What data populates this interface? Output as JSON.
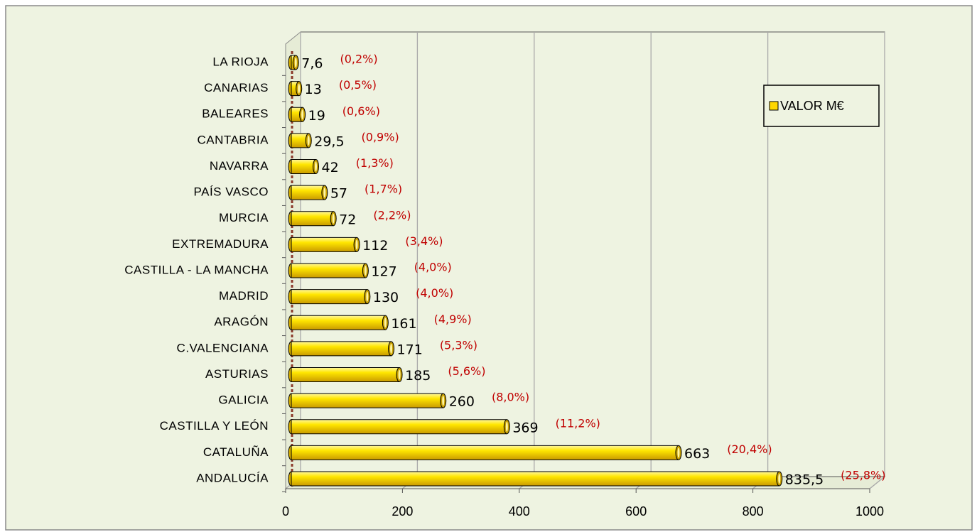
{
  "chart_data": {
    "type": "bar",
    "orientation": "horizontal",
    "categories": [
      "LA RIOJA",
      "CANARIAS",
      "BALEARES",
      "CANTABRIA",
      "NAVARRA",
      "PAÍS VASCO",
      "MURCIA",
      "EXTREMADURA",
      "CASTILLA - LA MANCHA",
      "MADRID",
      "ARAGÓN",
      "C.VALENCIANA",
      "ASTURIAS",
      "GALICIA",
      "CASTILLA Y LEÓN",
      "CATALUÑA",
      "ANDALUCÍA"
    ],
    "series": [
      {
        "name": "VALOR M€",
        "color": "#ffd700",
        "values": [
          7.6,
          13,
          19,
          29.5,
          42,
          57,
          72,
          112,
          127,
          130,
          161,
          171,
          185,
          260,
          369,
          663,
          835.5
        ],
        "value_labels": [
          "7,6",
          "13",
          "19",
          "29,5",
          "42",
          "57",
          "72",
          "112",
          "127",
          "130",
          "161",
          "171",
          "185",
          "260",
          "369",
          "663",
          "835,5"
        ]
      }
    ],
    "percent_labels": [
      "(0,2%)",
      "(0,5%)",
      "(0,6%)",
      "(0,9%)",
      "(1,3%)",
      "(1,7%)",
      "(2,2%)",
      "(3,4%)",
      "(4,0%)",
      "(4,0%)",
      "(4,9%)",
      "(5,3%)",
      "(5,6%)",
      "(8,0%)",
      "(11,2%)",
      "(20,4%)",
      "(25,8%)"
    ],
    "xlim": [
      0,
      1000
    ],
    "xticks": [
      0,
      200,
      400,
      600,
      800,
      1000
    ],
    "grid": true,
    "legend": "top-right"
  }
}
